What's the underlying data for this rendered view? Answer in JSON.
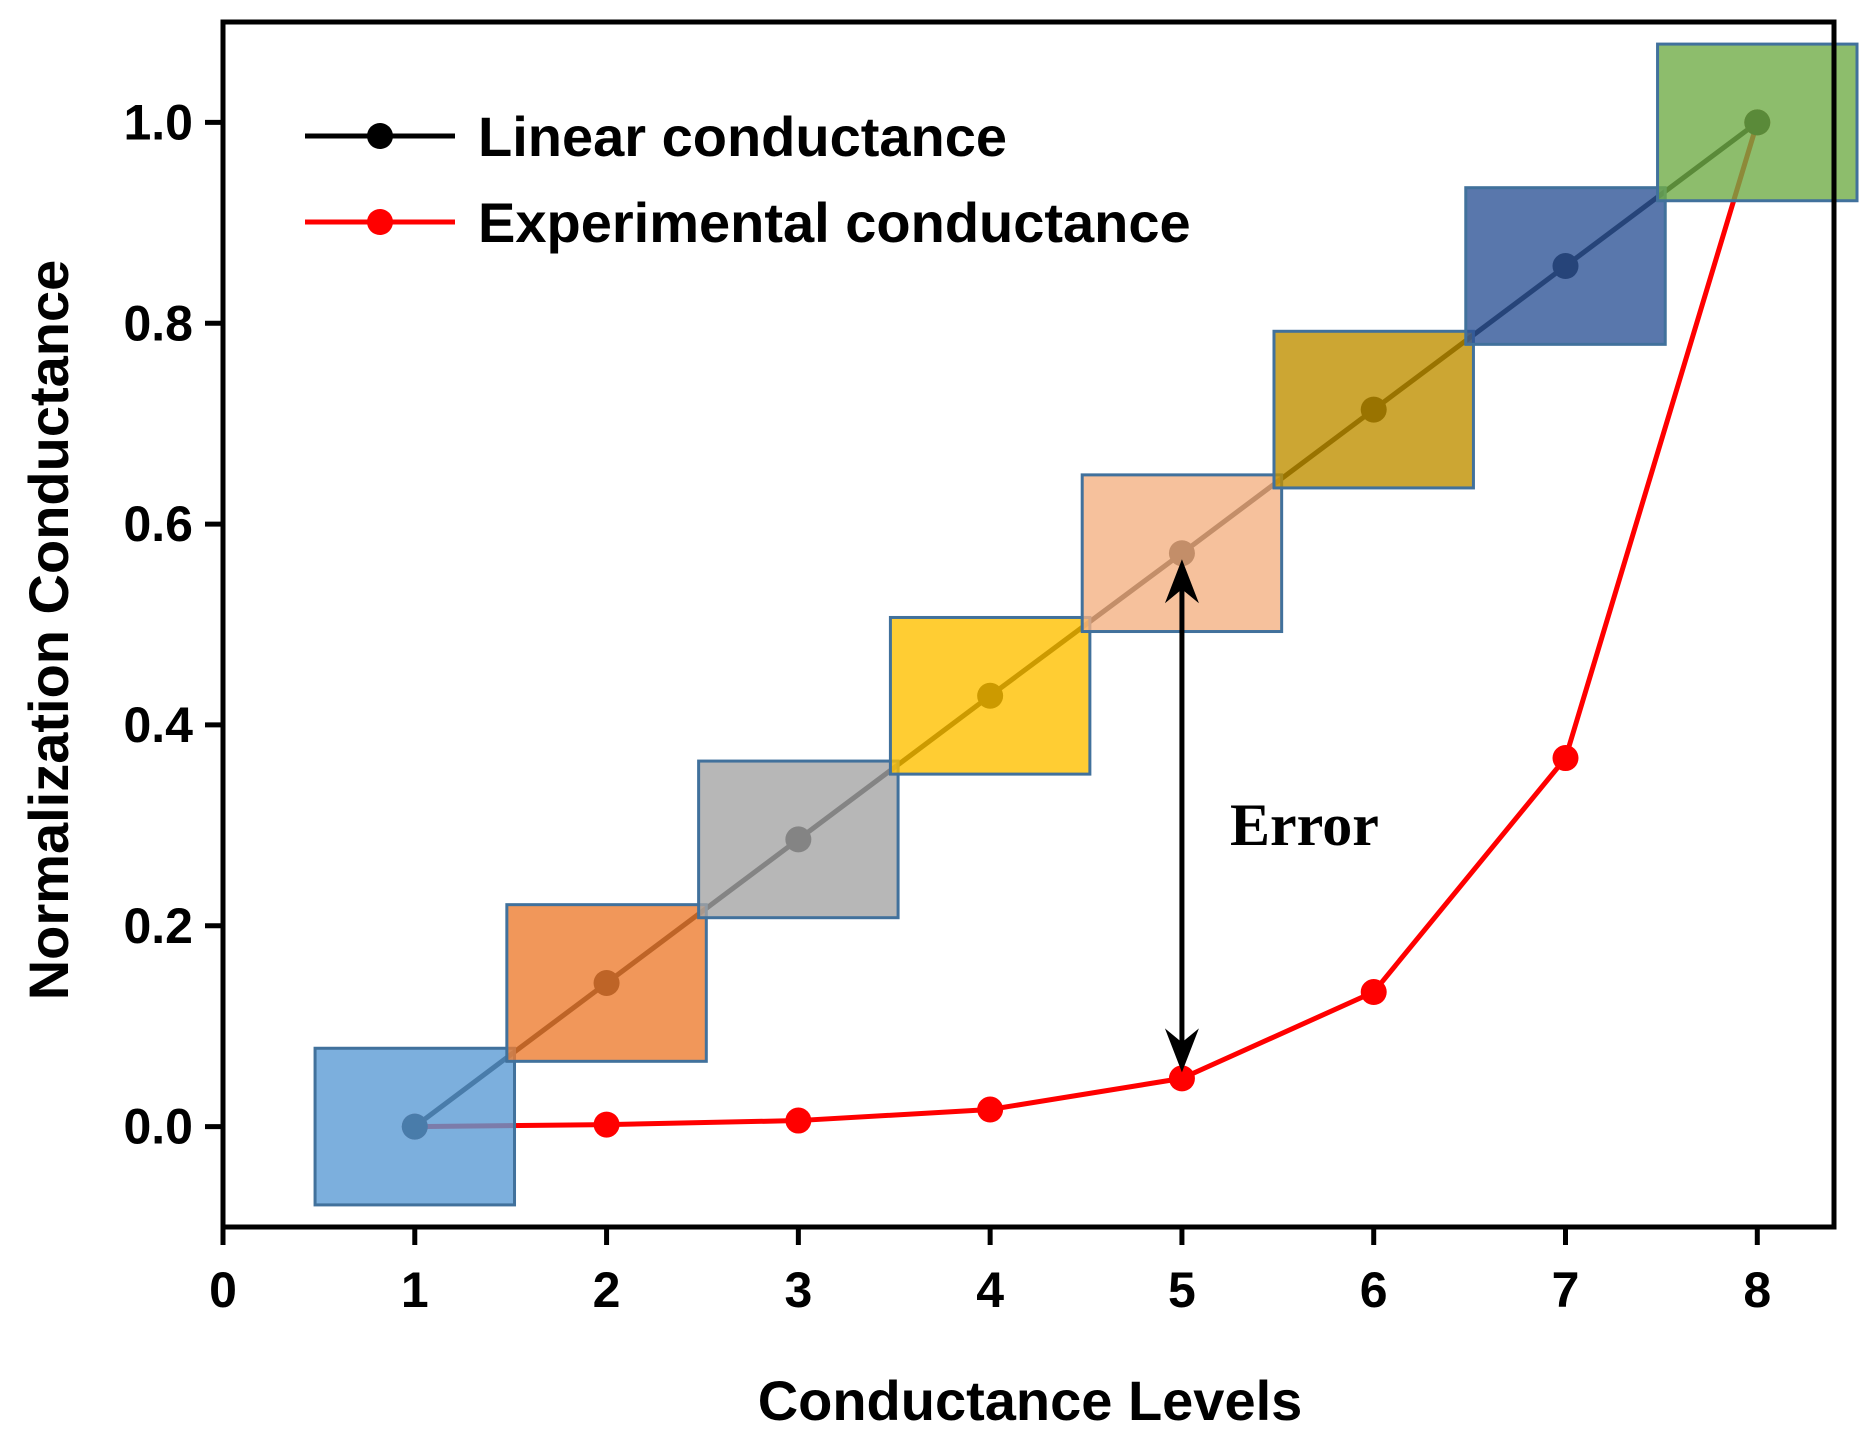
{
  "chart_data": {
    "type": "line",
    "title": "",
    "xlabel": "Conductance Levels",
    "ylabel": "Normalization Conductance",
    "xlim": [
      0,
      8.4
    ],
    "ylim": [
      -0.1,
      1.1
    ],
    "x_ticks": [
      0,
      1,
      2,
      3,
      4,
      5,
      6,
      7,
      8
    ],
    "x_tick_labels": [
      "0",
      "1",
      "2",
      "3",
      "4",
      "5",
      "6",
      "7",
      "8"
    ],
    "y_ticks": [
      0.0,
      0.2,
      0.4,
      0.6,
      0.8,
      1.0
    ],
    "y_tick_labels": [
      "0.0",
      "0.2",
      "0.4",
      "0.6",
      "0.8",
      "1.0"
    ],
    "grid": false,
    "legend_position": "top-left",
    "series": [
      {
        "name": "Linear conductance",
        "color": "#000000",
        "x": [
          1,
          2,
          3,
          4,
          5,
          6,
          7,
          8
        ],
        "values": [
          0,
          0.143,
          0.286,
          0.429,
          0.571,
          0.714,
          0.857,
          1.0
        ]
      },
      {
        "name": "Experimental conductance",
        "color": "#ff0000",
        "x": [
          1,
          2,
          3,
          4,
          5,
          6,
          7,
          8
        ],
        "values": [
          0,
          0.002,
          0.006,
          0.017,
          0.048,
          0.134,
          0.367,
          1.0
        ]
      }
    ],
    "level_boxes": {
      "half_width": 0.52,
      "half_height": 0.078,
      "colors": [
        "#5b9bd5",
        "#ed7d31",
        "#a5a5a5",
        "#ffc000",
        "#f4b183",
        "#bf9000",
        "#2f5597",
        "#70ad47"
      ]
    },
    "annotation": {
      "text": "Error",
      "x": 5,
      "y_from": 0.571,
      "y_to": 0.048
    }
  }
}
